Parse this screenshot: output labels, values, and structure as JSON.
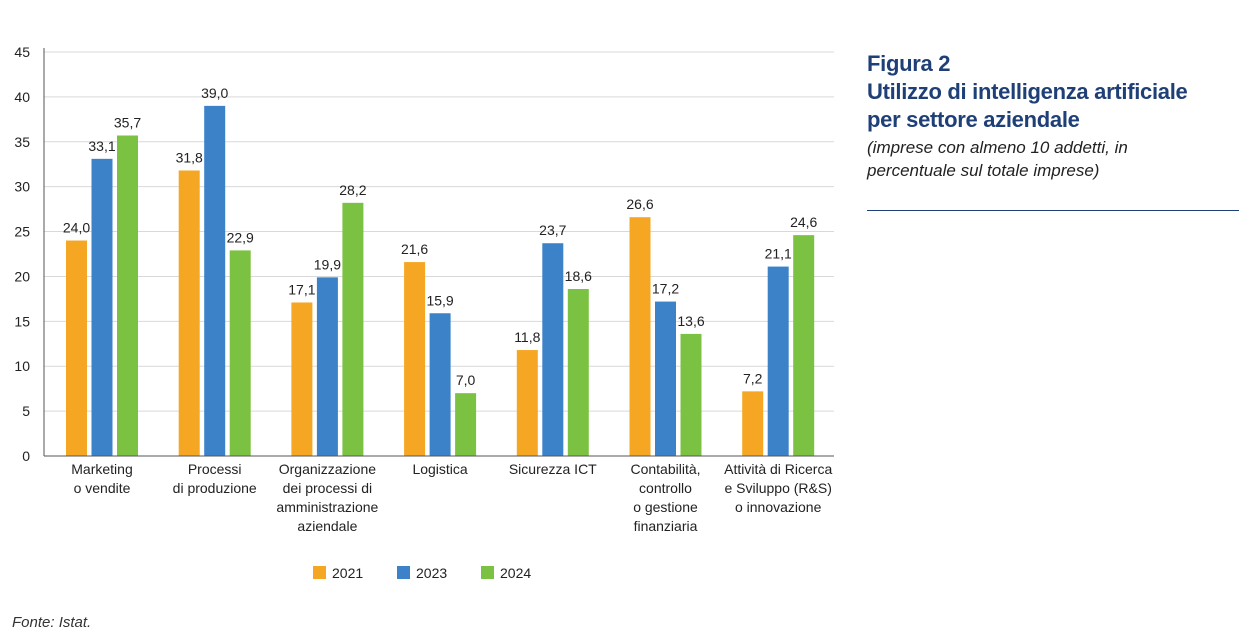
{
  "figure": {
    "label": "Figura 2",
    "title_lines": [
      "Utilizzo di intelligenza artificiale",
      "per settore aziendale"
    ],
    "subtitle_lines": [
      "(imprese con almeno 10 addetti, in",
      "percentuale sul totale imprese)"
    ],
    "source": "Fonte: Istat."
  },
  "chart_data": {
    "type": "bar",
    "categories": [
      [
        "Marketing",
        "o vendite"
      ],
      [
        "Processi",
        "di produzione"
      ],
      [
        "Organizzazione",
        "dei processi di",
        "amministrazione",
        "aziendale"
      ],
      [
        "Logistica"
      ],
      [
        "Sicurezza ICT"
      ],
      [
        "Contabilità,",
        "controllo",
        "o gestione",
        "finanziaria"
      ],
      [
        "Attività di Ricerca",
        "e Sviluppo (R&S)",
        "o innovazione"
      ]
    ],
    "series": [
      {
        "name": "2021",
        "color": "#f5a623",
        "values": [
          24.0,
          31.8,
          17.1,
          21.6,
          11.8,
          26.6,
          7.2
        ],
        "labels": [
          "24,0",
          "31,8",
          "17,1",
          "21,6",
          "11,8",
          "26,6",
          "7,2"
        ]
      },
      {
        "name": "2023",
        "color": "#3b82c9",
        "values": [
          33.1,
          39.0,
          19.9,
          15.9,
          23.7,
          17.2,
          21.1
        ],
        "labels": [
          "33,1",
          "39,0",
          "19,9",
          "15,9",
          "23,7",
          "17,2",
          "21,1"
        ]
      },
      {
        "name": "2024",
        "color": "#7cc242",
        "values": [
          35.7,
          22.9,
          28.2,
          7.0,
          18.6,
          13.6,
          24.6
        ],
        "labels": [
          "35,7",
          "22,9",
          "28,2",
          "7,0",
          "18,6",
          "13,6",
          "24,6"
        ]
      }
    ],
    "ylim": [
      0,
      45
    ],
    "yticks": [
      0,
      5,
      10,
      15,
      20,
      25,
      30,
      35,
      40,
      45
    ],
    "grid": true,
    "legend_position": "bottom-center",
    "xlabel": "",
    "ylabel": ""
  }
}
